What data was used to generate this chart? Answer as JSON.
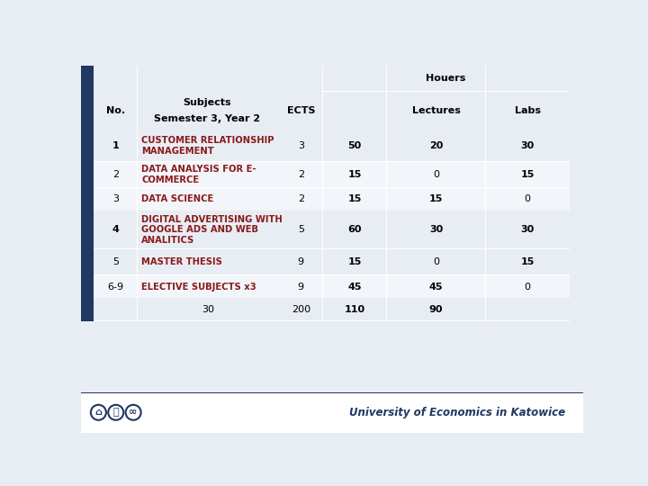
{
  "bg_color": "#e8edf4",
  "white_bg": "#f2f5f9",
  "dark_navy": "#1f3864",
  "red_color": "#8b1a1a",
  "footer_bg": "#ffffff",
  "footer_text_color": "#1f3864",
  "header": {
    "no_label": "No.",
    "subjects_label": "Subjects",
    "semester_label": "Semester 3, Year 2",
    "ects_label": "ECTS",
    "houers_label": "Houers",
    "lectures_label": "Lectures",
    "labs_label": "Labs"
  },
  "rows": [
    {
      "no": "1",
      "subject": "CUSTOMER RELATIONSHIP\nMANAGEMENT",
      "ects": "3",
      "total": "50",
      "lectures": "20",
      "labs": "30",
      "alt": true
    },
    {
      "no": "2",
      "subject": "DATA ANALYSIS FOR E-\nCOMMERCE",
      "ects": "2",
      "total": "15",
      "lectures": "0",
      "labs": "15",
      "alt": false
    },
    {
      "no": "3",
      "subject": "DATA SCIENCE",
      "ects": "2",
      "total": "15",
      "lectures": "15",
      "labs": "0",
      "alt": false
    },
    {
      "no": "4",
      "subject": "DIGITAL ADVERTISING WITH\nGOOGLE ADS AND WEB\nANALITICS",
      "ects": "5",
      "total": "60",
      "lectures": "30",
      "labs": "30",
      "alt": true
    },
    {
      "no": "5",
      "subject": "MASTER THESIS",
      "ects": "9",
      "total": "15",
      "lectures": "0",
      "labs": "15",
      "alt": true
    },
    {
      "no": "6-9",
      "subject": "ELECTIVE SUBJECTS x3",
      "ects": "9",
      "total": "45",
      "lectures": "45",
      "labs": "0",
      "alt": false
    }
  ],
  "totals_cols": [
    1,
    2,
    3,
    4
  ],
  "totals_vals": [
    "30",
    "200",
    "110",
    "90"
  ],
  "totals_bold": [
    false,
    false,
    true,
    true
  ],
  "footer_text": "University of Economics in Katowice",
  "page_bg": "#e8edf4"
}
